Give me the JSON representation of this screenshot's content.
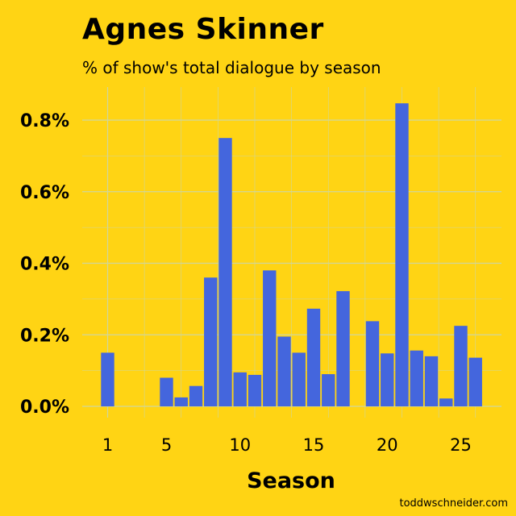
{
  "chart_data": {
    "type": "bar",
    "title": "Agnes Skinner",
    "subtitle": "% of show's total dialogue by season",
    "xlabel": "Season",
    "ylabel": "",
    "categories": [
      1,
      2,
      3,
      4,
      5,
      6,
      7,
      8,
      9,
      10,
      11,
      12,
      13,
      14,
      15,
      16,
      17,
      18,
      19,
      20,
      21,
      22,
      23,
      24,
      25,
      26
    ],
    "values": [
      0.15,
      0,
      0,
      0,
      0.08,
      0.025,
      0.057,
      0.36,
      0.75,
      0.095,
      0.088,
      0.38,
      0.195,
      0.15,
      0.273,
      0.09,
      0.322,
      0,
      0.238,
      0.148,
      0.847,
      0.156,
      0.14,
      0.022,
      0.225,
      0.136
    ],
    "ylim": [
      0,
      0.9
    ],
    "yticks": [
      "0.0%",
      "0.2%",
      "0.4%",
      "0.6%",
      "0.8%"
    ],
    "ytick_values": [
      0,
      0.2,
      0.4,
      0.6,
      0.8
    ],
    "xticks": [
      1,
      5,
      10,
      15,
      20,
      25
    ],
    "grid": true,
    "colors": {
      "background": "#FFD414",
      "bar": "#4466DD",
      "grid": "#CFD69E"
    }
  },
  "credit": "toddwschneider.com"
}
